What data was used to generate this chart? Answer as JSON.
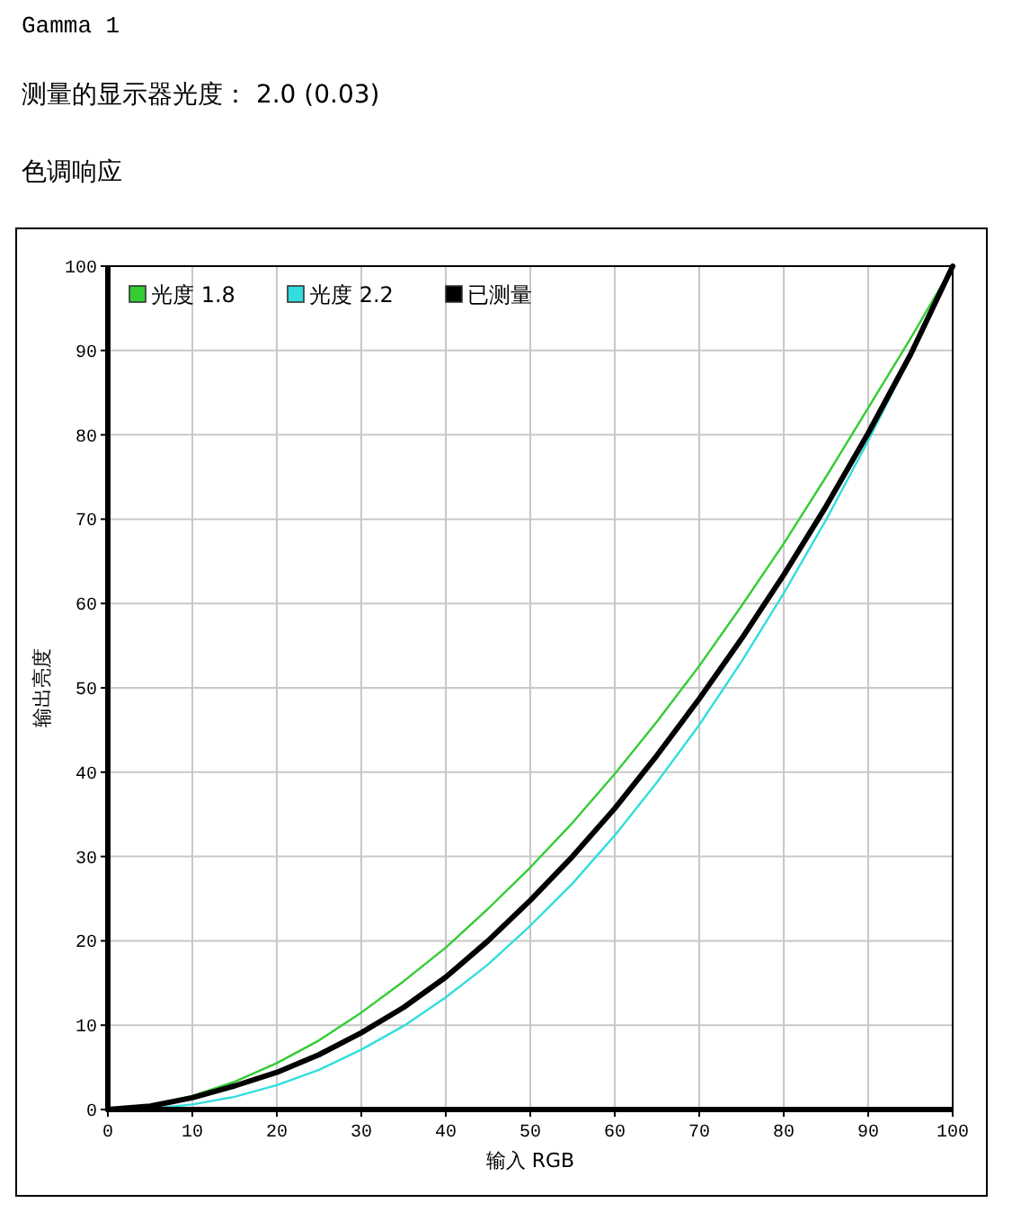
{
  "chart_data": {
    "type": "line",
    "title": "Gamma 1",
    "subtitle": "测量的显示器光度： 2.0 (0.03)",
    "annotations": [
      "色调响应"
    ],
    "xlabel": "输入 RGB",
    "ylabel": "输出亮度",
    "x": [
      0,
      5,
      10,
      15,
      20,
      25,
      30,
      35,
      40,
      45,
      50,
      55,
      60,
      65,
      70,
      75,
      80,
      85,
      90,
      95,
      100
    ],
    "xlim": [
      0,
      100
    ],
    "ylim": [
      0,
      100
    ],
    "xticks": [
      0,
      10,
      20,
      30,
      40,
      50,
      60,
      70,
      80,
      90,
      100
    ],
    "yticks": [
      0,
      10,
      20,
      30,
      40,
      50,
      60,
      70,
      80,
      90,
      100
    ],
    "grid": true,
    "legend": "top left",
    "marker": "none",
    "line_style": "solid",
    "series": [
      {
        "name": "光度 1.8",
        "color": "#33cc33",
        "values": [
          0,
          0.5,
          1.6,
          3.3,
          5.5,
          8.2,
          11.5,
          15.2,
          19.2,
          23.8,
          28.7,
          34,
          39.8,
          46,
          52.6,
          59.7,
          67.1,
          75,
          83.2,
          91.4,
          100
        ]
      },
      {
        "name": "光度 2.2",
        "color": "#33dddd",
        "values": [
          0,
          0.1,
          0.6,
          1.5,
          2.9,
          4.7,
          7.1,
          9.9,
          13.3,
          17.2,
          21.8,
          26.8,
          32.5,
          38.8,
          45.6,
          53.1,
          61.2,
          69.9,
          79.3,
          89.3,
          100
        ]
      },
      {
        "name": "已测量",
        "color": "#000000",
        "values": [
          0,
          0.4,
          1.4,
          2.8,
          4.4,
          6.5,
          9.1,
          12.1,
          15.7,
          20,
          24.8,
          30,
          35.7,
          42,
          48.7,
          55.8,
          63.4,
          71.5,
          80.2,
          89.5,
          100
        ]
      }
    ]
  }
}
